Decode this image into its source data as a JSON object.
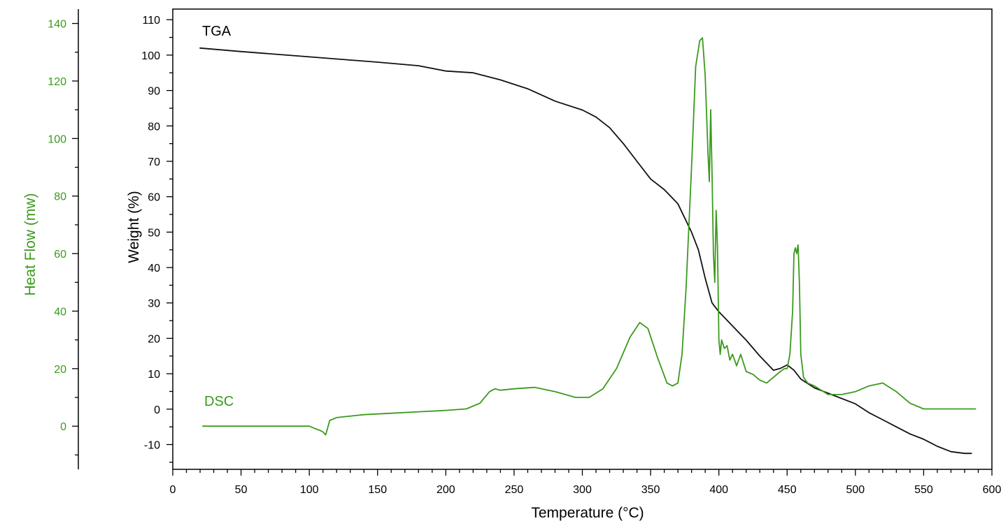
{
  "chart_data": {
    "type": "line",
    "x_axis": {
      "label": "Temperature (°C)",
      "range": [
        0,
        600
      ],
      "ticks": [
        0,
        50,
        100,
        150,
        200,
        250,
        300,
        350,
        400,
        450,
        500,
        550,
        600
      ]
    },
    "y_axis_left": {
      "label": "Heat Flow (mw)",
      "color": "#3a9a1c",
      "range": [
        -15,
        145
      ],
      "ticks": [
        0,
        20,
        40,
        60,
        80,
        100,
        120,
        140
      ]
    },
    "y_axis_right": {
      "label": "Weight (%)",
      "color": "#000000",
      "range": [
        -17,
        113
      ],
      "ticks": [
        -10,
        0,
        10,
        20,
        30,
        40,
        50,
        60,
        70,
        80,
        90,
        100,
        110
      ]
    },
    "grid": false,
    "series": [
      {
        "name": "TGA",
        "axis": "weight",
        "color": "#111111",
        "x": [
          20,
          50,
          100,
          150,
          180,
          200,
          220,
          240,
          260,
          280,
          300,
          310,
          320,
          330,
          340,
          350,
          360,
          370,
          380,
          385,
          390,
          395,
          398,
          400,
          410,
          420,
          430,
          440,
          445,
          450,
          455,
          460,
          470,
          480,
          500,
          510,
          520,
          530,
          540,
          550,
          560,
          570,
          580,
          585
        ],
        "y": [
          102,
          101,
          99.5,
          98,
          97,
          95.5,
          95,
          93,
          90.5,
          87,
          84.5,
          82.5,
          79.5,
          75,
          70,
          65,
          62,
          58,
          50,
          45,
          37,
          30,
          28.5,
          27.5,
          23.5,
          19.5,
          15,
          11,
          11.5,
          12.5,
          11,
          8.5,
          6,
          4.5,
          1.5,
          -1,
          -3,
          -5,
          -7,
          -8.5,
          -10.5,
          -12,
          -12.5,
          -12.5
        ]
      },
      {
        "name": "DSC",
        "axis": "heat_flow",
        "color": "#3a9a1c",
        "x": [
          22,
          60,
          80,
          95,
          100,
          105,
          108,
          110,
          112,
          115,
          120,
          140,
          160,
          180,
          200,
          215,
          225,
          232,
          236,
          240,
          250,
          265,
          280,
          295,
          305,
          315,
          325,
          335,
          342,
          348,
          355,
          362,
          366,
          370,
          373,
          376,
          380,
          383,
          386,
          388,
          390,
          392,
          393,
          394,
          395,
          396,
          397,
          398,
          399,
          400,
          401,
          402,
          404,
          406,
          408,
          410,
          413,
          416,
          420,
          425,
          430,
          435,
          440,
          445,
          448,
          450,
          452,
          454,
          455,
          456,
          457,
          458,
          459,
          460,
          462,
          465,
          470,
          480,
          490,
          500,
          510,
          520,
          530,
          540,
          550,
          560,
          570,
          588
        ],
        "y": [
          0,
          0,
          0,
          0,
          0,
          -1,
          -1.5,
          -2,
          -3,
          2,
          3,
          4,
          4.5,
          5,
          5.5,
          6,
          8,
          12,
          13,
          12.5,
          13,
          13.5,
          12,
          10,
          10,
          13,
          20,
          31,
          36,
          34,
          24,
          15,
          14,
          15,
          25,
          48,
          90,
          125,
          134,
          135,
          122,
          95,
          85,
          110,
          88,
          60,
          50,
          75,
          62,
          30,
          25,
          30,
          27,
          28,
          23,
          25,
          21,
          25,
          19,
          18,
          16,
          15,
          17,
          19,
          20,
          20,
          25,
          40,
          60,
          62,
          60,
          63,
          50,
          25,
          17,
          15,
          14,
          11,
          11,
          12,
          14,
          15,
          12,
          8,
          6,
          6,
          6,
          6
        ]
      }
    ],
    "annotations": [
      {
        "text": "TGA",
        "color": "#000000"
      },
      {
        "text": "DSC",
        "color": "#3a9a1c"
      }
    ]
  }
}
